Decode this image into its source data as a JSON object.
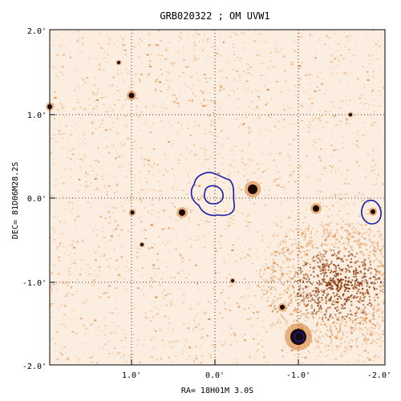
{
  "title": "GRB020322 ; OM UVW1",
  "xlabel": "RA= 18H01M 3.0S",
  "ylabel": "DEC= 81D06M28.2S",
  "x_ticks": [
    "1.0'",
    "0.0'",
    "-1.0'",
    "-2.0'"
  ],
  "y_ticks": [
    "2.0'",
    "1.0'",
    "0.0'",
    "-1.0'",
    "-2.0'"
  ],
  "colors": {
    "background_light": "#fbeee0",
    "noise": "#f2b27a",
    "noise_dark": "#d97a2c",
    "source": "#1a0a00",
    "contour": "#1a1aa8",
    "grid": "#000000"
  }
}
